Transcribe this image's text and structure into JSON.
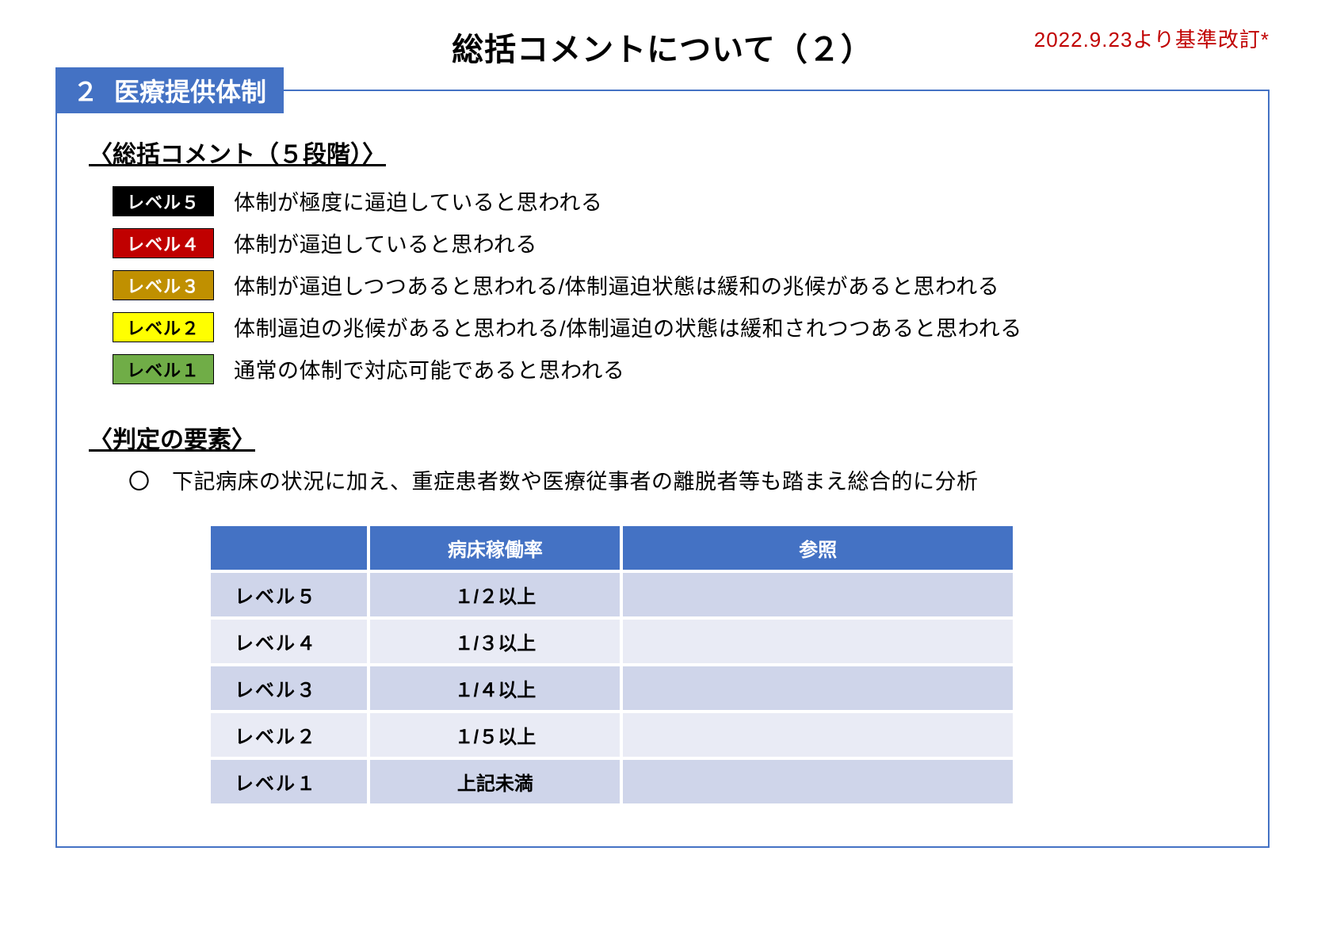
{
  "header": {
    "title": "総括コメントについて（２）",
    "revisionNote": "2022.9.23より基準改訂*",
    "revisionColor": "#c00000"
  },
  "section": {
    "number": "２",
    "title": "医療提供体制",
    "tabBgColor": "#4472c4",
    "tabTextColor": "#ffffff",
    "borderColor": "#4472c4"
  },
  "levelsHeading": "〈総括コメント（５段階）〉",
  "levels": [
    {
      "label": "レベル５",
      "badgeBg": "#000000",
      "badgeText": "#ffffff",
      "desc": "体制が極度に逼迫していると思われる"
    },
    {
      "label": "レベル４",
      "badgeBg": "#c00000",
      "badgeText": "#ffffff",
      "desc": "体制が逼迫していると思われる"
    },
    {
      "label": "レベル３",
      "badgeBg": "#c09000",
      "badgeText": "#ffffff",
      "desc": "体制が逼迫しつつあると思われる/体制逼迫状態は緩和の兆候があると思われる"
    },
    {
      "label": "レベル２",
      "badgeBg": "#ffff00",
      "badgeText": "#000000",
      "desc": "体制逼迫の兆候があると思われる/体制逼迫の状態は緩和されつつあると思われる"
    },
    {
      "label": "レベル１",
      "badgeBg": "#70ad47",
      "badgeText": "#000000",
      "desc": "通常の体制で対応可能であると思われる"
    }
  ],
  "criteria": {
    "heading": "〈判定の要素〉",
    "note": "〇　下記病床の状況に加え、重症患者数や医療従事者の離脱者等も踏まえ総合的に分析",
    "table": {
      "headerBg": "#4472c4",
      "headerText": "#ffffff",
      "rowBgEven": "#cfd5ea",
      "rowBgOdd": "#e9ebf5",
      "columns": [
        "",
        "病床稼働率",
        "参照"
      ],
      "rows": [
        {
          "level": "レベル５",
          "rate": "１/２以上",
          "ref": ""
        },
        {
          "level": "レベル４",
          "rate": "１/３以上",
          "ref": ""
        },
        {
          "level": "レベル３",
          "rate": "１/４以上",
          "ref": ""
        },
        {
          "level": "レベル２",
          "rate": "１/５以上",
          "ref": ""
        },
        {
          "level": "レベル１",
          "rate": "上記未満",
          "ref": ""
        }
      ]
    }
  }
}
